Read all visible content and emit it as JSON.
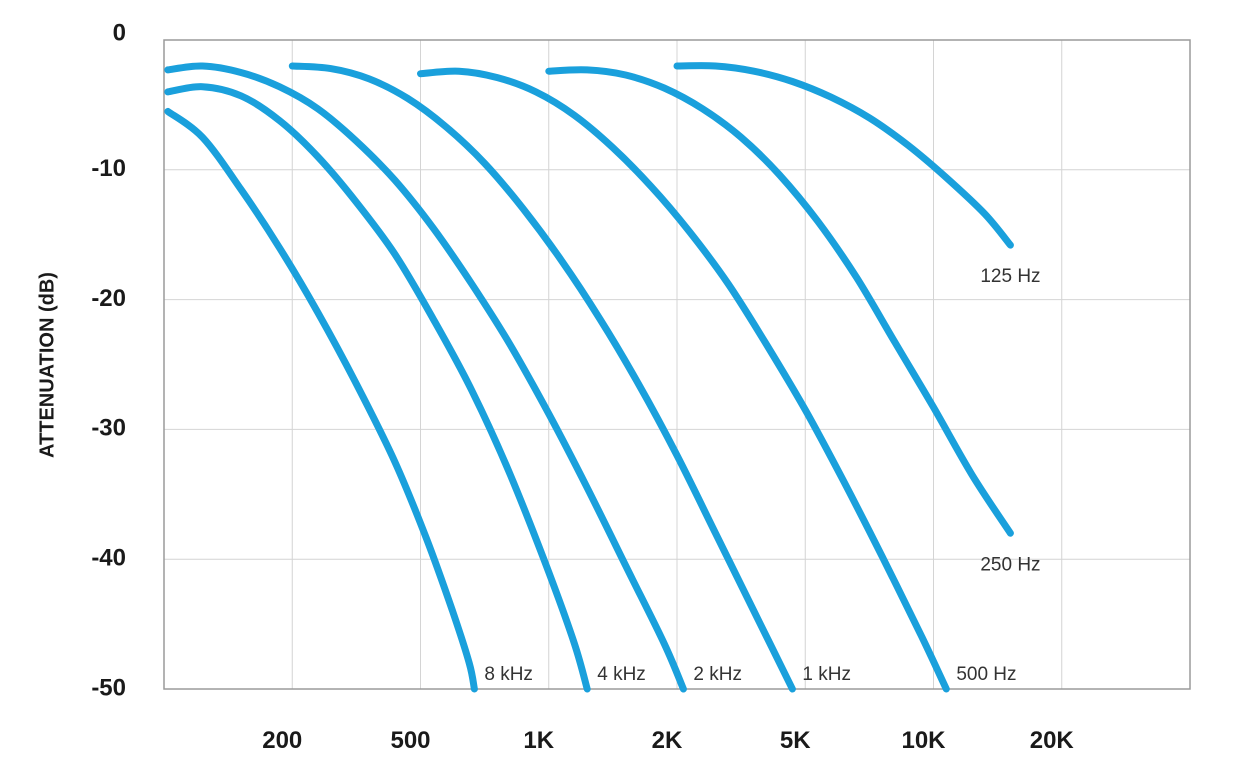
{
  "chart_data": {
    "type": "line",
    "title": "",
    "xlabel": "",
    "ylabel": "ATTENUATION (dB)",
    "ylim": [
      -50,
      0
    ],
    "yticks": [
      "0",
      "-10",
      "-20",
      "-30",
      "-40",
      "-50"
    ],
    "yticks_values": [
      0,
      -10,
      -20,
      -30,
      -40,
      -50
    ],
    "xticks": [
      "200",
      "500",
      "1K",
      "2K",
      "5K",
      "10K",
      "20K"
    ],
    "grid": true,
    "line_color": "#1aa0dc",
    "series": [
      {
        "name": "8 kHz",
        "points": [
          [
            0.03,
            -5.5
          ],
          [
            0.3,
            -7.5
          ],
          [
            0.6,
            -11.5
          ],
          [
            0.9,
            -16
          ],
          [
            1.2,
            -21
          ],
          [
            1.5,
            -26.5
          ],
          [
            1.8,
            -32.5
          ],
          [
            2.05,
            -38.5
          ],
          [
            2.25,
            -44
          ],
          [
            2.38,
            -48
          ],
          [
            2.42,
            -50
          ]
        ]
      },
      {
        "name": "4 kHz",
        "points": [
          [
            0.03,
            -4
          ],
          [
            0.3,
            -3.6
          ],
          [
            0.6,
            -4.3
          ],
          [
            0.9,
            -6.2
          ],
          [
            1.2,
            -9
          ],
          [
            1.5,
            -12.5
          ],
          [
            1.8,
            -16.5
          ],
          [
            2.1,
            -21.5
          ],
          [
            2.4,
            -27
          ],
          [
            2.7,
            -33.5
          ],
          [
            3.0,
            -41
          ],
          [
            3.2,
            -46.5
          ],
          [
            3.3,
            -50
          ]
        ]
      },
      {
        "name": "2 kHz",
        "points": [
          [
            0.03,
            -2.3
          ],
          [
            0.3,
            -2
          ],
          [
            0.6,
            -2.5
          ],
          [
            0.9,
            -3.6
          ],
          [
            1.2,
            -5.3
          ],
          [
            1.5,
            -7.8
          ],
          [
            1.8,
            -10.8
          ],
          [
            2.1,
            -14.5
          ],
          [
            2.4,
            -18.8
          ],
          [
            2.7,
            -23.5
          ],
          [
            3.0,
            -28.8
          ],
          [
            3.3,
            -34.5
          ],
          [
            3.6,
            -40.5
          ],
          [
            3.9,
            -46.5
          ],
          [
            4.05,
            -50
          ]
        ]
      },
      {
        "name": "1 kHz",
        "points": [
          [
            1.0,
            -2
          ],
          [
            1.3,
            -2.2
          ],
          [
            1.6,
            -3
          ],
          [
            1.9,
            -4.5
          ],
          [
            2.2,
            -6.7
          ],
          [
            2.5,
            -9.5
          ],
          [
            2.8,
            -13
          ],
          [
            3.1,
            -17
          ],
          [
            3.4,
            -21.5
          ],
          [
            3.7,
            -26.5
          ],
          [
            4.0,
            -32
          ],
          [
            4.3,
            -38
          ],
          [
            4.6,
            -44
          ],
          [
            4.9,
            -50
          ]
        ]
      },
      {
        "name": "500 Hz",
        "points": [
          [
            2.0,
            -2.6
          ],
          [
            2.3,
            -2.4
          ],
          [
            2.6,
            -2.9
          ],
          [
            2.9,
            -4
          ],
          [
            3.2,
            -5.8
          ],
          [
            3.5,
            -8.3
          ],
          [
            3.8,
            -11.3
          ],
          [
            4.1,
            -14.8
          ],
          [
            4.4,
            -18.8
          ],
          [
            4.7,
            -23.5
          ],
          [
            5.0,
            -28.5
          ],
          [
            5.3,
            -34
          ],
          [
            5.6,
            -39.8
          ],
          [
            5.9,
            -45.8
          ],
          [
            6.1,
            -50
          ]
        ]
      },
      {
        "name": "250 Hz",
        "points": [
          [
            3.0,
            -2.4
          ],
          [
            3.3,
            -2.3
          ],
          [
            3.6,
            -2.7
          ],
          [
            3.9,
            -3.7
          ],
          [
            4.2,
            -5.3
          ],
          [
            4.5,
            -7.5
          ],
          [
            4.8,
            -10.4
          ],
          [
            5.1,
            -14
          ],
          [
            5.4,
            -18.3
          ],
          [
            5.7,
            -23.3
          ],
          [
            6.0,
            -28.3
          ],
          [
            6.3,
            -33.5
          ],
          [
            6.6,
            -38
          ]
        ]
      },
      {
        "name": "125 Hz",
        "points": [
          [
            4.0,
            -2
          ],
          [
            4.3,
            -2
          ],
          [
            4.6,
            -2.4
          ],
          [
            4.9,
            -3.2
          ],
          [
            5.2,
            -4.4
          ],
          [
            5.5,
            -6
          ],
          [
            5.8,
            -8.1
          ],
          [
            6.1,
            -10.6
          ],
          [
            6.4,
            -13.4
          ],
          [
            6.6,
            -15.8
          ]
        ]
      }
    ]
  }
}
